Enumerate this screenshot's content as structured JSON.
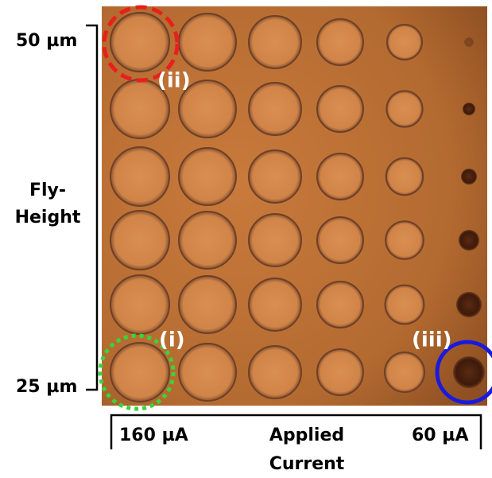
{
  "y_axis": {
    "top": "50 µm",
    "label_lines": [
      "Fly-",
      "Height"
    ],
    "bottom": "25 µm"
  },
  "x_axis": {
    "left": "160 µA",
    "label_lines": [
      "Applied",
      "Current"
    ],
    "right": "60 µA"
  },
  "markers": [
    "(ii)",
    "(i)",
    "(iii)"
  ]
}
